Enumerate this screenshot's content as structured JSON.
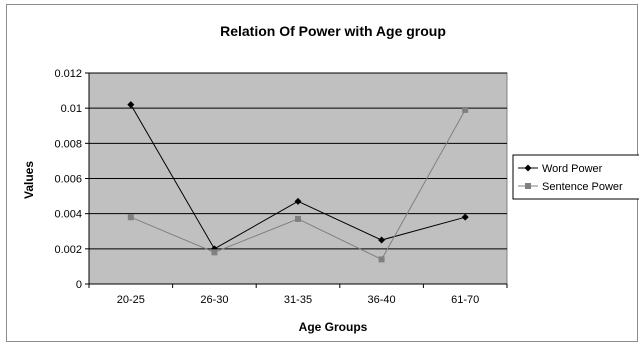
{
  "chart_data": {
    "type": "line",
    "title": "Relation Of Power with Age group",
    "xlabel": "Age Groups",
    "ylabel": "Values",
    "categories": [
      "20-25",
      "26-30",
      "31-35",
      "36-40",
      "61-70"
    ],
    "ylim": [
      0,
      0.012
    ],
    "yticks": [
      "0",
      "0.002",
      "0.004",
      "0.006",
      "0.008",
      "0.01",
      "0.012"
    ],
    "grid": true,
    "legend_position": "right",
    "plot_background": "#c0c0c0",
    "series": [
      {
        "name": "Word Power",
        "values": [
          0.0102,
          0.002,
          0.0047,
          0.0025,
          0.0038
        ],
        "color": "#000000",
        "marker": "diamond"
      },
      {
        "name": "Sentence Power",
        "values": [
          0.0038,
          0.0018,
          0.0037,
          0.0014,
          0.0099
        ],
        "color": "#808080",
        "marker": "square"
      }
    ]
  }
}
